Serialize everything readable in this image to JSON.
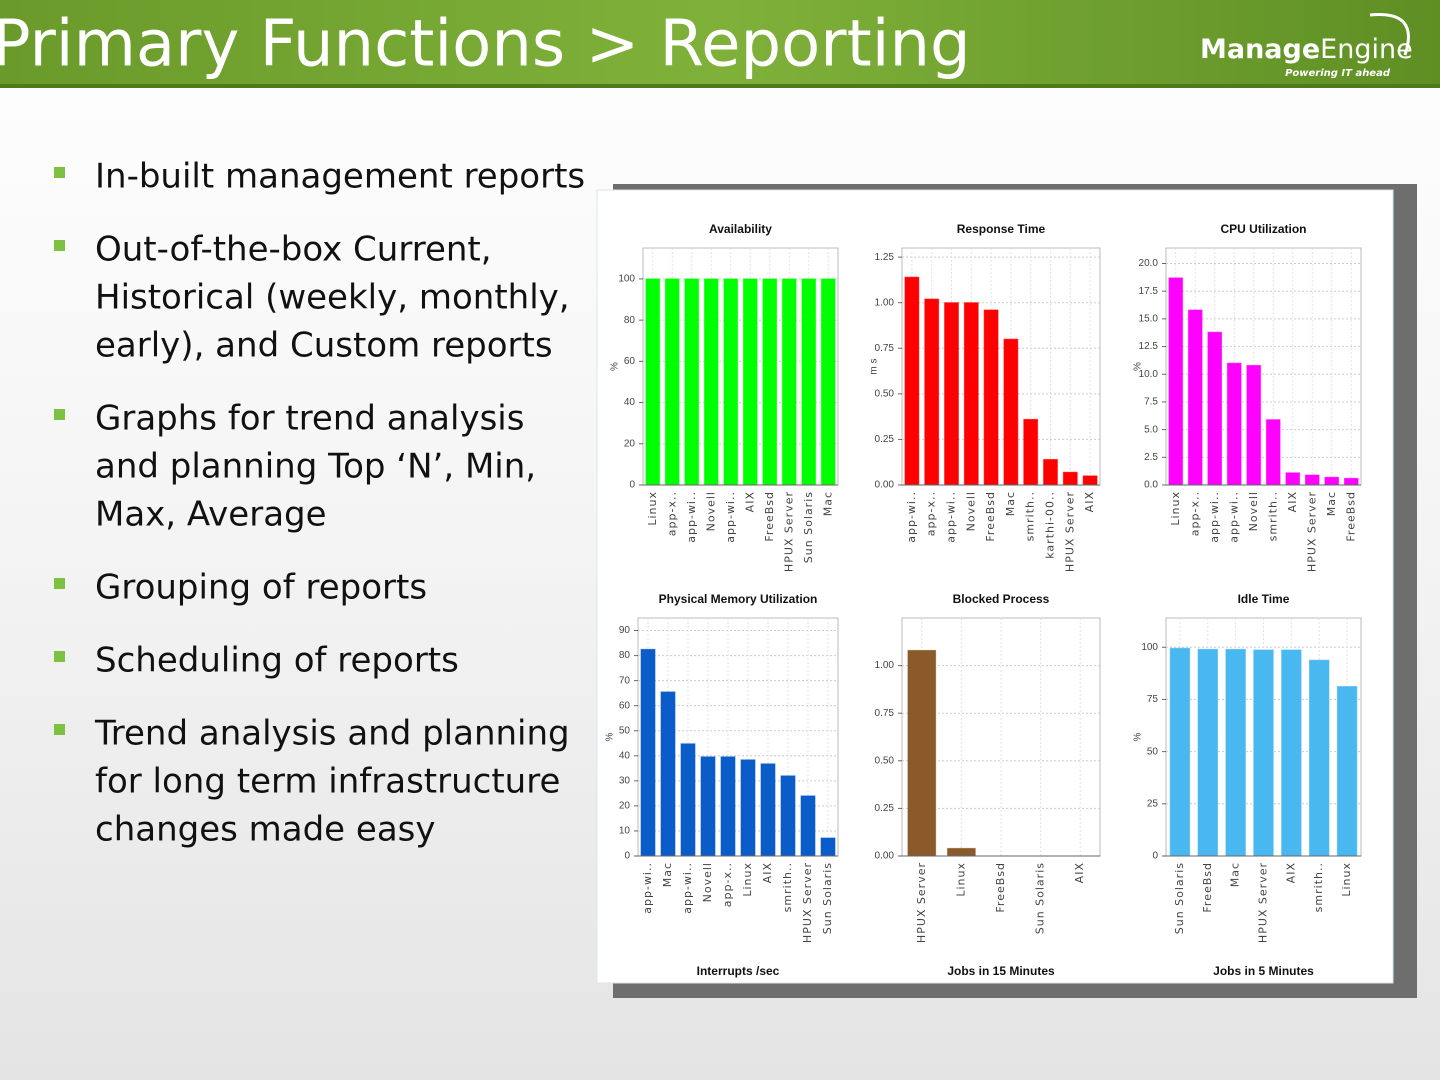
{
  "header": {
    "title": "Primary Functions > Reporting",
    "logo": {
      "brand_bold": "Manage",
      "brand": "Engine",
      "tagline": "Powering IT ahead"
    }
  },
  "bullets": [
    [
      "In-built management reports"
    ],
    [
      "Out-of-the-box Current,",
      "Historical (weekly, monthly,",
      "early), and Custom reports"
    ],
    [
      "Graphs for trend analysis",
      "and planning Top ‘N’, Min,",
      "Max, Average"
    ],
    [
      "Grouping of reports"
    ],
    [
      "Scheduling of reports"
    ],
    [
      "Trend analysis and planning",
      "for long term infrastructure",
      "changes made easy"
    ]
  ],
  "chart_data": [
    {
      "type": "bar",
      "title": "Availability",
      "ylabel": "%",
      "color": "#00ff00",
      "grid": true,
      "categories": [
        "Linux",
        "app-x..",
        "app-wi..",
        "Novell",
        "app-wi..",
        "AIX",
        "FreeBsd",
        "HPUX Server",
        "Sun Solaris",
        "Mac"
      ],
      "values": [
        100,
        100,
        100,
        100,
        100,
        100,
        100,
        100,
        100,
        100
      ],
      "ylim": [
        0,
        115
      ],
      "yticks": [
        0,
        20,
        40,
        60,
        80,
        100
      ]
    },
    {
      "type": "bar",
      "title": "Response Time",
      "ylabel": "m s",
      "color": "#ff0000",
      "grid": true,
      "categories": [
        "app-wi..",
        "app-x..",
        "app-wi..",
        "Novell",
        "FreeBsd",
        "Mac",
        "smrith..",
        "karthi-00..",
        "HPUX Server",
        "AIX"
      ],
      "values": [
        1.14,
        1.02,
        1.0,
        1.0,
        0.96,
        0.8,
        0.36,
        0.14,
        0.07,
        0.05
      ],
      "ylim": [
        0,
        1.3
      ],
      "yticks": [
        {
          "value": 0,
          "label": "0.00"
        },
        0.25,
        {
          "value": 0.5,
          "label": "0.50"
        },
        0.75,
        {
          "value": 1,
          "label": "1.00"
        },
        1.25
      ]
    },
    {
      "type": "bar",
      "title": "CPU Utilization",
      "ylabel": "%",
      "color": "#ff00ff",
      "grid": true,
      "categories": [
        "Linux",
        "app-x..",
        "app-wi..",
        "app-wi..",
        "Novell",
        "smrith..",
        "AIX",
        "HPUX Server",
        "Mac",
        "FreeBsd"
      ],
      "values": [
        18.7,
        15.8,
        13.8,
        11.0,
        10.8,
        5.9,
        1.1,
        0.9,
        0.7,
        0.6
      ],
      "ylim": [
        0,
        21.4
      ],
      "yticks": [
        {
          "value": 0,
          "label": "0.0"
        },
        2.5,
        {
          "value": 5,
          "label": "5.0"
        },
        7.5,
        {
          "value": 10,
          "label": "10.0"
        },
        12.5,
        {
          "value": 15,
          "label": "15.0"
        },
        17.5,
        {
          "value": 20,
          "label": "20.0"
        }
      ]
    },
    {
      "type": "bar",
      "title": "Physical Memory Utilization",
      "ylabel": "%",
      "xlabel": "Interrupts /sec",
      "color": "#0a5cc8",
      "grid": true,
      "categories": [
        "app-wi..",
        "Mac",
        "app-wi..",
        "Novell",
        "app-x..",
        "Linux",
        "AIX",
        "smrith..",
        "HPUX Server",
        "Sun Solaris"
      ],
      "values": [
        82.5,
        65.5,
        44.8,
        39.6,
        39.6,
        38.4,
        36.8,
        32,
        24,
        7.2
      ],
      "ylim": [
        0,
        95
      ],
      "yticks": [
        0,
        10,
        20,
        30,
        40,
        50,
        60,
        70,
        80,
        90
      ]
    },
    {
      "type": "bar",
      "title": "Blocked Process",
      "xlabel": "Jobs in 15 Minutes",
      "color": "#8b5a2b",
      "grid": true,
      "categories": [
        "HPUX Server",
        "Linux",
        "FreeBsd",
        "Sun Solaris",
        "AIX"
      ],
      "values": [
        1.08,
        0.04,
        0,
        0,
        0
      ],
      "ylim": [
        0,
        1.25
      ],
      "yticks": [
        {
          "value": 0,
          "label": "0.00"
        },
        0.25,
        {
          "value": 0.5,
          "label": "0.50"
        },
        0.75,
        {
          "value": 1,
          "label": "1.00"
        }
      ]
    },
    {
      "type": "bar",
      "title": "Idle Time",
      "ylabel": "%",
      "xlabel": "Jobs in 5 Minutes",
      "color": "#4ab8f0",
      "grid": true,
      "categories": [
        "Sun Solaris",
        "FreeBsd",
        "Mac",
        "HPUX Server",
        "AIX",
        "smrith..",
        "Linux"
      ],
      "values": [
        99.5,
        99,
        99,
        98.7,
        98.7,
        93.8,
        81.2
      ],
      "ylim": [
        0,
        114
      ],
      "yticks": [
        0,
        25,
        50,
        75,
        100
      ]
    }
  ]
}
